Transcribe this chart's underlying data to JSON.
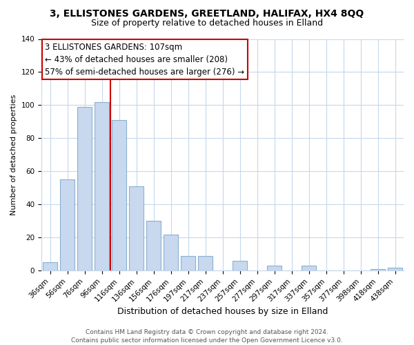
{
  "title": "3, ELLISTONES GARDENS, GREETLAND, HALIFAX, HX4 8QQ",
  "subtitle": "Size of property relative to detached houses in Elland",
  "xlabel": "Distribution of detached houses by size in Elland",
  "ylabel": "Number of detached properties",
  "bar_labels": [
    "36sqm",
    "56sqm",
    "76sqm",
    "96sqm",
    "116sqm",
    "136sqm",
    "156sqm",
    "176sqm",
    "197sqm",
    "217sqm",
    "237sqm",
    "257sqm",
    "277sqm",
    "297sqm",
    "317sqm",
    "337sqm",
    "357sqm",
    "377sqm",
    "398sqm",
    "418sqm",
    "438sqm"
  ],
  "bar_values": [
    5,
    55,
    99,
    102,
    91,
    51,
    30,
    22,
    9,
    9,
    0,
    6,
    0,
    3,
    0,
    3,
    0,
    0,
    0,
    1,
    2
  ],
  "bar_color": "#c8d8ee",
  "bar_edge_color": "#8ab0d0",
  "vline_x_index": 3.5,
  "vline_color": "#cc0000",
  "ylim": [
    0,
    140
  ],
  "annotation_title": "3 ELLISTONES GARDENS: 107sqm",
  "annotation_line1": "← 43% of detached houses are smaller (208)",
  "annotation_line2": "57% of semi-detached houses are larger (276) →",
  "footer_line1": "Contains HM Land Registry data © Crown copyright and database right 2024.",
  "footer_line2": "Contains public sector information licensed under the Open Government Licence v3.0.",
  "title_fontsize": 10,
  "subtitle_fontsize": 9,
  "xlabel_fontsize": 9,
  "ylabel_fontsize": 8,
  "tick_fontsize": 7.5,
  "annotation_fontsize": 8.5,
  "footer_fontsize": 6.5
}
